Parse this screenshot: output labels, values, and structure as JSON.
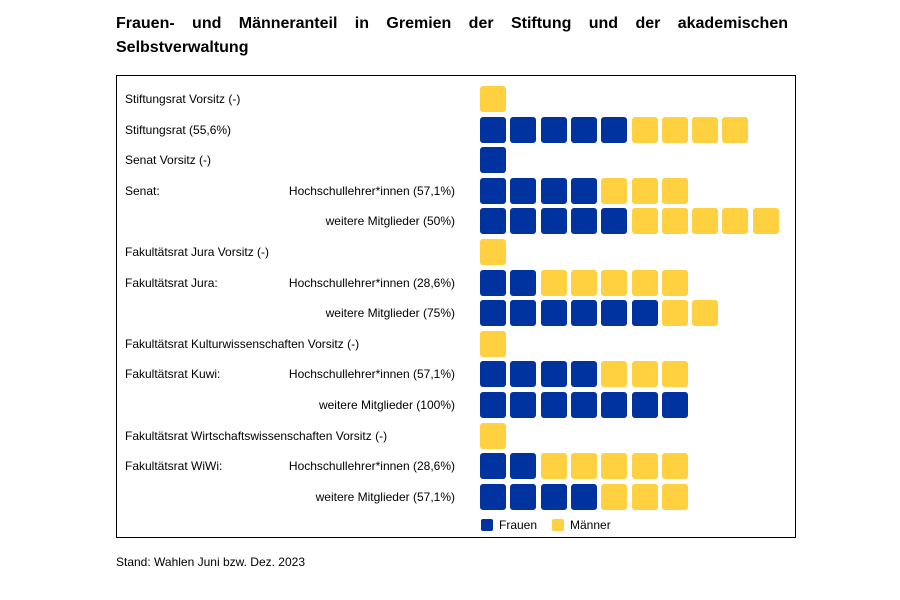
{
  "title": "Frauen- und Männeranteil in Gremien der Stiftung und der akademischen Selbstverwaltung",
  "footer": "Stand: Wahlen Juni bzw. Dez. 2023",
  "colors": {
    "frauen": "#0033a0",
    "maenner": "#ffd040"
  },
  "chart_data": {
    "type": "pictograph",
    "legend": [
      {
        "name": "Frauen",
        "color": "#0033a0"
      },
      {
        "name": "Männer",
        "color": "#ffd040"
      }
    ],
    "rows": [
      {
        "label": "Stiftungsrat Vorsitz (-)",
        "sublabel": "",
        "frauen": 0,
        "maenner": 1
      },
      {
        "label": "Stiftungsrat (55,6%)",
        "sublabel": "",
        "frauen": 5,
        "maenner": 4
      },
      {
        "label": "Senat Vorsitz (-)",
        "sublabel": "",
        "frauen": 1,
        "maenner": 0
      },
      {
        "label": "Senat:",
        "sublabel": "Hochschullehrer*innen (57,1%)",
        "frauen": 4,
        "maenner": 3
      },
      {
        "label": "",
        "sublabel": "weitere Mitglieder (50%)",
        "frauen": 5,
        "maenner": 5
      },
      {
        "label": "Fakultätsrat Jura Vorsitz (-)",
        "sublabel": "",
        "frauen": 0,
        "maenner": 1
      },
      {
        "label": "Fakultätsrat Jura:",
        "sublabel": "Hochschullehrer*innen (28,6%)",
        "frauen": 2,
        "maenner": 5
      },
      {
        "label": "",
        "sublabel": "weitere Mitglieder (75%)",
        "frauen": 6,
        "maenner": 2
      },
      {
        "label": "Fakultätsrat Kulturwissenschaften Vorsitz (-)",
        "sublabel": "",
        "frauen": 0,
        "maenner": 1
      },
      {
        "label": "Fakultätsrat Kuwi:",
        "sublabel": "Hochschullehrer*innen (57,1%)",
        "frauen": 4,
        "maenner": 3
      },
      {
        "label": "",
        "sublabel": "weitere Mitglieder (100%)",
        "frauen": 7,
        "maenner": 0
      },
      {
        "label": "Fakultätsrat Wirtschaftswissenschaften Vorsitz (-)",
        "sublabel": "",
        "frauen": 0,
        "maenner": 1
      },
      {
        "label": "Fakultätsrat WiWi:",
        "sublabel": "Hochschullehrer*innen (28,6%)",
        "frauen": 2,
        "maenner": 5
      },
      {
        "label": "",
        "sublabel": "weitere Mitglieder (57,1%)",
        "frauen": 4,
        "maenner": 3
      }
    ]
  }
}
